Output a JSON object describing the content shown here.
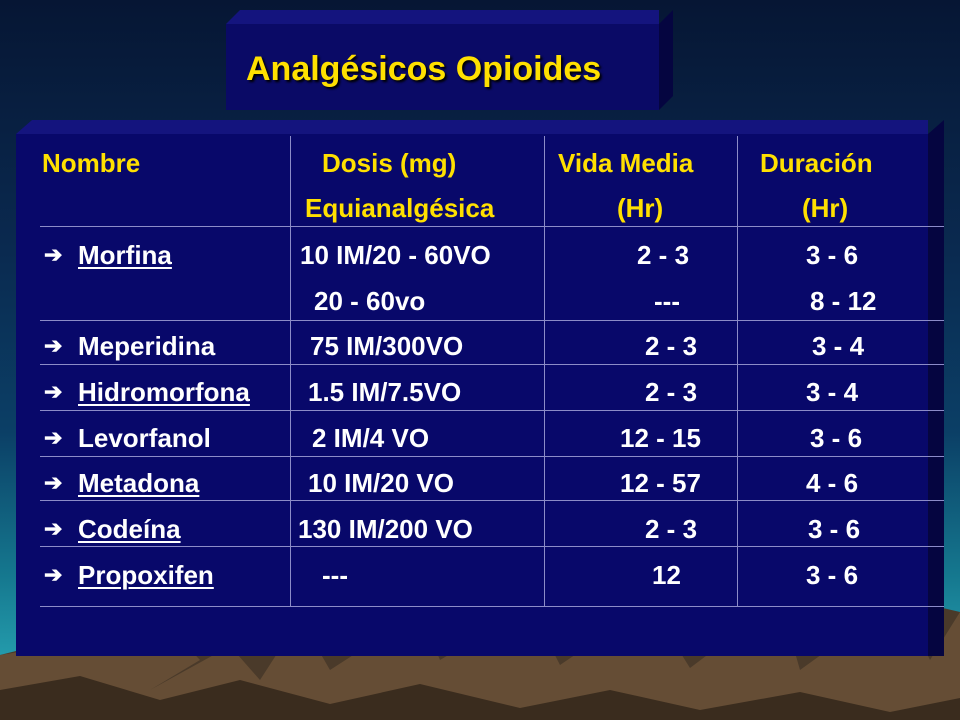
{
  "title": "Analgésicos Opioides",
  "headers": {
    "nombre": "Nombre",
    "dosis_1": "Dosis (mg)",
    "dosis_2": "Equianalgésica",
    "vida_1": "Vida Media",
    "vida_2": "(Hr)",
    "duracion_1": "Duración",
    "duracion_2": "(Hr)"
  },
  "bullet_icon": "right-arrow-icon",
  "rows": [
    {
      "nombre": "Morfina",
      "dosis": "10 IM/20 - 60VO",
      "vida": "2 - 3",
      "duracion": "3 - 6",
      "underlined": true
    },
    {
      "nombre": "",
      "dosis": "20 - 60vo",
      "vida": "---",
      "duracion": "8 - 12",
      "underlined": false
    },
    {
      "nombre": "Meperidina",
      "dosis": "75 IM/300VO",
      "vida": "2 - 3",
      "duracion": "3 - 4",
      "underlined": false
    },
    {
      "nombre": "Hidromorfona",
      "dosis": "1.5 IM/7.5VO",
      "vida": "2 - 3",
      "duracion": "3 - 4",
      "underlined": true
    },
    {
      "nombre": "Levorfanol",
      "dosis": "2 IM/4 VO",
      "vida": "12 - 15",
      "duracion": "3 - 6",
      "underlined": false
    },
    {
      "nombre": "Metadona",
      "dosis": "10 IM/20 VO",
      "vida": "12 - 57",
      "duracion": "4 - 6",
      "underlined": true
    },
    {
      "nombre": "Codeína",
      "dosis": "130 IM/200 VO",
      "vida": "2 - 3",
      "duracion": "3 - 6",
      "underlined": true
    },
    {
      "nombre": "Propoxifen",
      "dosis": "---",
      "vida": "12",
      "duracion": "3 - 6",
      "underlined": true
    }
  ],
  "colors": {
    "title_text": "#ffe000",
    "header_text": "#ffe000",
    "body_text": "#ffffff",
    "panel": "#08086a"
  }
}
